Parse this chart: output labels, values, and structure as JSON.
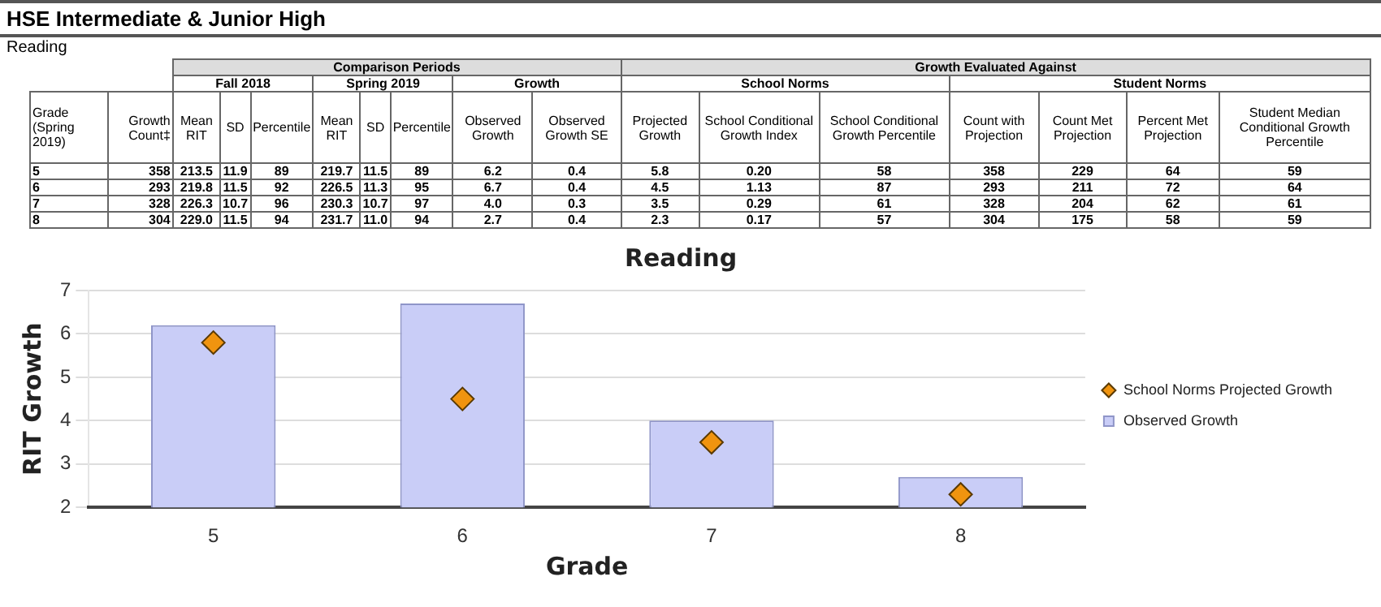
{
  "chart_data": [
    {
      "type": "other",
      "title": "HSE Intermediate & Junior High",
      "subtitle": "Reading",
      "annotations": [
        "Comparison Periods",
        "Growth Evaluated Against",
        "Fall 2018",
        "Spring 2019",
        "Growth",
        "School Norms",
        "Student Norms",
        "Grade (Spring 2019)",
        "Growth Count‡",
        "Mean RIT",
        "SD",
        "Percentile",
        "Mean RIT",
        "SD",
        "Percentile",
        "Observed Growth",
        "Observed Growth SE",
        "Projected Growth",
        "School Conditional Growth Index",
        "School Conditional Growth Percentile",
        "Count with Projection",
        "Count Met Projection",
        "Percent Met Projection",
        "Student Median Conditional Growth Percentile",
        "5",
        "358",
        "213.5",
        "11.9",
        "89",
        "219.7",
        "11.5",
        "89",
        "6.2",
        "0.4",
        "5.8",
        "0.20",
        "58",
        "358",
        "229",
        "64",
        "59",
        "6",
        "293",
        "219.8",
        "11.5",
        "92",
        "226.5",
        "11.3",
        "95",
        "6.7",
        "0.4",
        "4.5",
        "1.13",
        "87",
        "293",
        "211",
        "72",
        "64",
        "7",
        "328",
        "226.3",
        "10.7",
        "96",
        "230.3",
        "10.7",
        "97",
        "4.0",
        "0.3",
        "3.5",
        "0.29",
        "61",
        "328",
        "204",
        "62",
        "61",
        "8",
        "304",
        "229.0",
        "11.5",
        "94",
        "231.7",
        "11.0",
        "94",
        "2.7",
        "0.4",
        "2.3",
        "0.17",
        "57",
        "304",
        "175",
        "58",
        "59"
      ]
    },
    {
      "type": "bar",
      "title": "Reading",
      "xlabel": "Grade",
      "ylabel": "RIT Growth",
      "categories": [
        "5",
        "6",
        "7",
        "8"
      ],
      "series": [
        {
          "name": "Observed Growth",
          "type": "bar",
          "color": "#c9cdf7",
          "values": [
            6.2,
            6.7,
            4.0,
            2.7
          ]
        },
        {
          "name": "School Norms Projected Growth",
          "type": "scatter",
          "color": "#f0940f",
          "values": [
            5.8,
            4.5,
            3.5,
            2.3
          ]
        }
      ],
      "ylim": [
        2,
        7
      ],
      "yticks": [
        2,
        3,
        4,
        5,
        6,
        7
      ],
      "grid": "y",
      "legend": "right",
      "marker": "diamond"
    }
  ]
}
